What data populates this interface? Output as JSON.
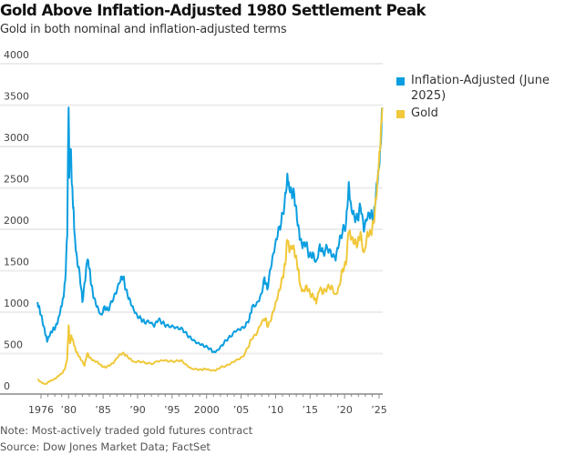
{
  "header": {
    "title": "Gold Above Inflation-Adjusted 1980 Settlement Peak",
    "subtitle": "Gold in both nominal and inflation-adjusted terms"
  },
  "footer": {
    "note": "Note: Most-actively traded gold futures contract",
    "source": "Source: Dow Jones Market Data; FactSet"
  },
  "colors": {
    "inflation_adjusted": "#0a9ee0",
    "gold": "#f0c83a",
    "grid": "#ececec",
    "axis": "#888888"
  },
  "chart_data": {
    "type": "line",
    "title": "Gold Above Inflation-Adjusted 1980 Settlement Peak",
    "subtitle": "Gold in both nominal and inflation-adjusted terms",
    "xlabel": "",
    "ylabel": "",
    "ylim": [
      0,
      4000
    ],
    "xlim": [
      1975,
      2025.6
    ],
    "yticks": [
      0,
      500,
      1000,
      1500,
      2000,
      2500,
      3000,
      3500,
      4000
    ],
    "ytick_labels": [
      "0",
      "500",
      "1000",
      "1500",
      "2000",
      "2500",
      "3000",
      "3500",
      "4000"
    ],
    "xticks": [
      1976,
      1980,
      1985,
      1990,
      1995,
      2000,
      2005,
      2010,
      2015,
      2020,
      2025
    ],
    "xtick_labels": [
      "1976",
      "’80",
      "’85",
      "’90",
      "’95",
      "2000",
      "’05",
      "’10",
      "’15",
      "’20",
      "’25"
    ],
    "grid": true,
    "legend_position": "right",
    "series": [
      {
        "name": "Inflation-Adjusted (June 2025)",
        "x": [
          1975.5,
          1975.8,
          1976.2,
          1976.6,
          1976.9,
          1977.3,
          1977.7,
          1978.1,
          1978.5,
          1978.9,
          1979.2,
          1979.5,
          1979.8,
          1980.0,
          1980.1,
          1980.3,
          1980.5,
          1980.7,
          1980.9,
          1981.2,
          1981.6,
          1982.0,
          1982.4,
          1982.7,
          1983.0,
          1983.3,
          1983.7,
          1984.2,
          1984.7,
          1985.2,
          1985.7,
          1986.3,
          1986.9,
          1987.5,
          1987.9,
          1988.3,
          1988.8,
          1989.3,
          1989.9,
          1990.5,
          1991.0,
          1991.7,
          1992.4,
          1993.0,
          1993.6,
          1994.2,
          1995.0,
          1995.8,
          1996.5,
          1997.2,
          1997.8,
          1998.5,
          1999.2,
          1999.8,
          2000.5,
          2001.0,
          2001.5,
          2002.2,
          2002.8,
          2003.5,
          2004.2,
          2004.9,
          2005.6,
          2006.2,
          2006.6,
          2007.3,
          2007.9,
          2008.4,
          2008.8,
          2009.3,
          2009.8,
          2010.3,
          2010.8,
          2011.3,
          2011.7,
          2011.9,
          2012.3,
          2012.7,
          2013.1,
          2013.5,
          2013.9,
          2014.4,
          2014.9,
          2015.4,
          2015.9,
          2016.4,
          2016.9,
          2017.5,
          2018.1,
          2018.7,
          2019.2,
          2019.7,
          2020.2,
          2020.6,
          2020.9,
          2021.4,
          2021.9,
          2022.3,
          2022.8,
          2023.3,
          2023.8,
          2024.2,
          2024.6,
          2024.9,
          2025.2,
          2025.45
        ],
        "values": [
          1100,
          1020,
          870,
          720,
          620,
          700,
          760,
          800,
          900,
          1050,
          1150,
          1350,
          1900,
          3450,
          2600,
          2950,
          2500,
          2250,
          1900,
          1650,
          1450,
          1100,
          1350,
          1600,
          1500,
          1300,
          1150,
          1050,
          950,
          1050,
          1000,
          1100,
          1200,
          1350,
          1400,
          1250,
          1150,
          1050,
          950,
          900,
          850,
          850,
          800,
          880,
          850,
          820,
          820,
          800,
          780,
          700,
          650,
          600,
          580,
          560,
          540,
          500,
          520,
          580,
          640,
          680,
          740,
          760,
          800,
          900,
          1050,
          1100,
          1200,
          1400,
          1250,
          1500,
          1700,
          1900,
          2050,
          2300,
          2650,
          2550,
          2450,
          2400,
          2100,
          1850,
          1750,
          1800,
          1650,
          1700,
          1600,
          1800,
          1700,
          1750,
          1650,
          1600,
          1800,
          1950,
          2050,
          2550,
          2300,
          2150,
          2100,
          2250,
          1950,
          2100,
          2150,
          2100,
          2500,
          2700,
          3000,
          3450
        ]
      },
      {
        "name": "Gold",
        "x": [
          1975.5,
          1975.9,
          1976.3,
          1976.7,
          1977.1,
          1977.6,
          1978.1,
          1978.6,
          1979.1,
          1979.5,
          1979.8,
          1980.0,
          1980.2,
          1980.4,
          1980.7,
          1981.0,
          1981.4,
          1981.8,
          1982.3,
          1982.7,
          1983.1,
          1983.6,
          1984.2,
          1984.8,
          1985.3,
          1985.9,
          1986.5,
          1987.2,
          1987.8,
          1988.3,
          1988.9,
          1989.5,
          1990.2,
          1991.0,
          1992.0,
          1993.0,
          1993.8,
          1994.6,
          1995.5,
          1996.3,
          1997.0,
          1997.8,
          1998.6,
          1999.3,
          1999.8,
          2000.6,
          2001.3,
          2002.0,
          2002.8,
          2003.6,
          2004.4,
          2005.2,
          2006.0,
          2006.5,
          2007.2,
          2007.9,
          2008.5,
          2008.9,
          2009.5,
          2010.0,
          2010.5,
          2011.0,
          2011.4,
          2011.7,
          2012.0,
          2012.5,
          2012.9,
          2013.3,
          2013.6,
          2014.0,
          2014.5,
          2015.0,
          2015.5,
          2015.9,
          2016.4,
          2016.9,
          2017.5,
          2018.1,
          2018.7,
          2019.2,
          2019.7,
          2020.2,
          2020.6,
          2020.9,
          2021.4,
          2021.9,
          2022.3,
          2022.8,
          2023.3,
          2023.8,
          2024.2,
          2024.6,
          2024.9,
          2025.2,
          2025.45
        ],
        "values": [
          165,
          140,
          120,
          110,
          140,
          155,
          175,
          210,
          240,
          300,
          420,
          820,
          600,
          700,
          620,
          520,
          450,
          400,
          330,
          480,
          430,
          400,
          380,
          330,
          310,
          330,
          360,
          440,
          480,
          460,
          420,
          380,
          390,
          370,
          350,
          380,
          390,
          380,
          385,
          400,
          350,
          300,
          290,
          280,
          290,
          270,
          270,
          310,
          330,
          370,
          410,
          440,
          550,
          650,
          700,
          830,
          900,
          800,
          950,
          1100,
          1250,
          1400,
          1550,
          1850,
          1700,
          1750,
          1650,
          1500,
          1300,
          1250,
          1300,
          1200,
          1150,
          1080,
          1250,
          1200,
          1280,
          1300,
          1200,
          1300,
          1500,
          1550,
          1950,
          1850,
          1800,
          1800,
          1950,
          1700,
          1950,
          1950,
          2050,
          2350,
          2650,
          3000,
          3450
        ]
      }
    ]
  }
}
